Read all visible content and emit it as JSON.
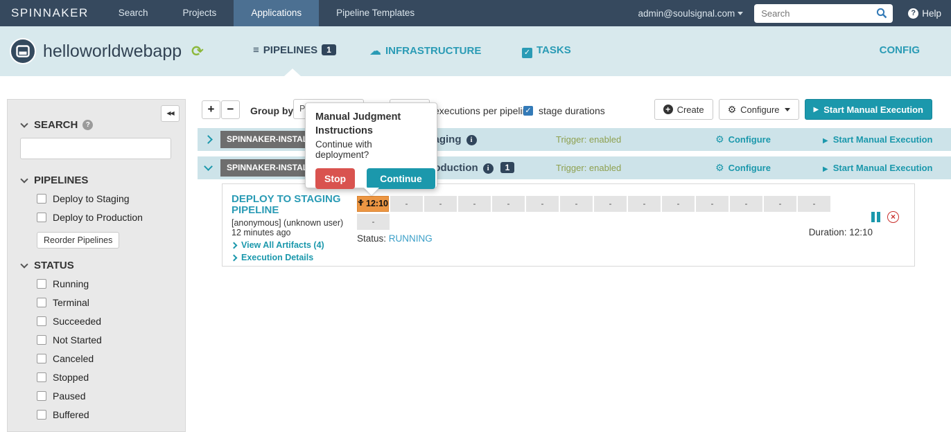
{
  "topnav": {
    "brand": "SPINNAKER",
    "items": [
      {
        "label": "Search"
      },
      {
        "label": "Projects"
      },
      {
        "label": "Applications",
        "active": true
      },
      {
        "label": "Pipeline Templates"
      }
    ],
    "user_menu": "admin@soulsignal.com",
    "search_placeholder": "Search",
    "help_label": "Help"
  },
  "app_header": {
    "app_name": "helloworldwebapp",
    "tabs": [
      {
        "label": "PIPELINES",
        "badge": "1",
        "icon": "list-icon",
        "active": true
      },
      {
        "label": "INFRASTRUCTURE",
        "icon": "cloud-icon"
      },
      {
        "label": "TASKS",
        "icon": "check-square-icon"
      }
    ],
    "config_label": "CONFIG"
  },
  "sidebar": {
    "search_title": "SEARCH",
    "search_value": "",
    "pipelines_title": "PIPELINES",
    "pipeline_filters": [
      "Deploy to Staging",
      "Deploy to Production"
    ],
    "reorder_button": "Reorder Pipelines",
    "status_title": "STATUS",
    "status_filters": [
      "Running",
      "Terminal",
      "Succeeded",
      "Not Started",
      "Canceled",
      "Stopped",
      "Paused",
      "Buffered"
    ]
  },
  "toolbar": {
    "zoom_in": "+",
    "zoom_out": "−",
    "group_by_label": "Group by",
    "group_by_value": "Pipeline",
    "count_value": "",
    "executions_label": "executions per pipeline",
    "stage_durations_label": "stage durations",
    "stage_durations_checked": true,
    "create_label": "Create",
    "configure_label": "Configure",
    "start_label": "Start Manual Execution"
  },
  "groups": [
    {
      "tag": "SPINNAKER-INSTALL",
      "name": "Deploy to Staging",
      "trigger": "Trigger: enabled",
      "configure_label": "Configure",
      "start_label": "Start Manual Execution",
      "expanded": false
    },
    {
      "tag": "SPINNAKER-INSTALL",
      "name": "Deploy to Production",
      "badge": "1",
      "trigger": "Trigger: enabled",
      "configure_label": "Configure",
      "start_label": "Start Manual Execution",
      "expanded": true
    }
  ],
  "execution": {
    "title": "DEPLOY TO STAGING PIPELINE",
    "user": "[anonymous] (unknown user)",
    "time_ago": "12 minutes ago",
    "artifacts_link": "View All Artifacts (4)",
    "details_link": "Execution Details",
    "judgment_stage": {
      "icon": "person-icon",
      "label": "12:10"
    },
    "placeholders_row1": [
      "-",
      "-",
      "-",
      "-",
      "-",
      "-",
      "-",
      "-",
      "-",
      "-",
      "-",
      "-",
      "-"
    ],
    "placeholders_row2": [
      "-"
    ],
    "status_label": "Status:",
    "status_value": "RUNNING",
    "duration_text": "Duration: 12:10"
  },
  "popup": {
    "title": "Manual Judgment Instructions",
    "message": "Continue with deployment?",
    "stop_label": "Stop",
    "continue_label": "Continue"
  },
  "colors": {
    "nav_bg": "#36495e",
    "nav_active": "#4c7092",
    "app_header_bg": "#d8e9ed",
    "accent_teal": "#1b98ac",
    "link_teal": "#2a9bb5",
    "danger_red": "#d9534f",
    "judgment_orange": "#ec9643",
    "row_bg": "#cde3e9",
    "trigger_green": "#8ea04f",
    "running_blue": "#3a9fc8",
    "dark_slate": "#36495c"
  }
}
